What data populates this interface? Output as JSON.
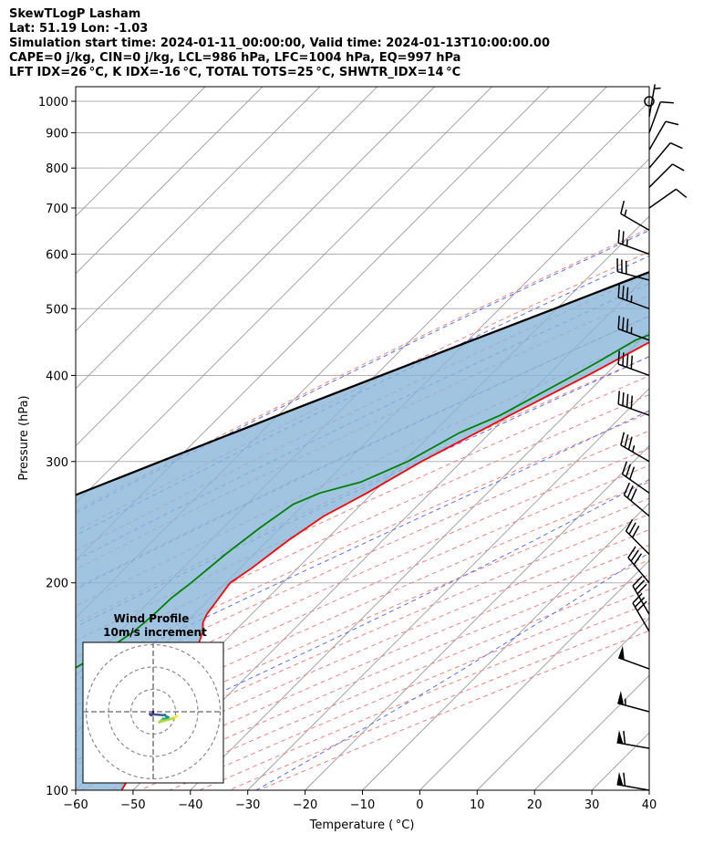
{
  "header": {
    "line1": "SkewTLogP Lasham",
    "line2": "Lat: 51.19   Lon: -1.03",
    "line3": "Simulation start time: 2024-01-11_00:00:00, Valid time: 2024-01-13T10:00:00.00",
    "line4": "CAPE=0 j/kg, CIN=0 j/kg, LCL=986 hPa, LFC=1004 hPa, EQ=997 hPa",
    "line5": "LFT IDX=26 °C, K IDX=-16 °C, TOTAL TOTS=25 °C, SHWTR_IDX=14 °C"
  },
  "chart_data": {
    "type": "line",
    "xlabel": "Temperature ( °C)",
    "ylabel": "Pressure (hPa)",
    "xlim": [
      -60,
      40
    ],
    "ylim": [
      1050,
      100
    ],
    "yscale": "log",
    "x_ticks": [
      -60,
      -50,
      -40,
      -30,
      -20,
      -10,
      0,
      10,
      20,
      30,
      40
    ],
    "x_tick_labels": [
      "−60",
      "−50",
      "−40",
      "−30",
      "−20",
      "−10",
      "0",
      "10",
      "20",
      "30",
      "40"
    ],
    "y_ticks": [
      1000,
      900,
      800,
      700,
      600,
      500,
      400,
      300,
      200,
      100
    ],
    "y_tick_labels": [
      "1000",
      "900",
      "800",
      "700",
      "600",
      "500",
      "400",
      "300",
      "200",
      "100"
    ],
    "grid": true,
    "skewed": true,
    "series": [
      {
        "role": "temperature",
        "color": "#ff0000",
        "p": [
          1000,
          990,
          975,
          950,
          925,
          900,
          850,
          800,
          750,
          700,
          650,
          600,
          550,
          500,
          450,
          400,
          350,
          300,
          270,
          250,
          230,
          210,
          200,
          190,
          180,
          175,
          170,
          160,
          150,
          140,
          130,
          125,
          120,
          115,
          110,
          105,
          100
        ],
        "t": [
          -2,
          -1.5,
          -1.4,
          -2,
          -3,
          -4.5,
          -7.5,
          -10.5,
          -14,
          -17,
          -20.5,
          -24,
          -28.3,
          -32.8,
          -37.7,
          -43,
          -49.6,
          -57,
          -61,
          -64.5,
          -66.5,
          -68,
          -69.2,
          -68.5,
          -67.8,
          -67,
          -65.5,
          -63.4,
          -61,
          -59.4,
          -58,
          -56.6,
          -56.4,
          -55,
          -53.8,
          -53,
          -52
        ]
      },
      {
        "role": "dewpoint",
        "color": "#008000",
        "p": [
          1000,
          990,
          975,
          950,
          925,
          900,
          850,
          800,
          750,
          700,
          650,
          600,
          550,
          500,
          470,
          450,
          420,
          400,
          350,
          330,
          300,
          280,
          270,
          260,
          240,
          220,
          200,
          190,
          180,
          170,
          160,
          150,
          140,
          130,
          120,
          100
        ],
        "t": [
          -2,
          -8.3,
          -13.2,
          -18.8,
          -24,
          -26.5,
          -25,
          -25.4,
          -28.5,
          -30,
          -30,
          -30.7,
          -33.4,
          -34.3,
          -37.2,
          -40.8,
          -43.4,
          -45.4,
          -51.3,
          -55.4,
          -59.4,
          -64,
          -69.2,
          -71.9,
          -73.6,
          -75,
          -76,
          -76.8,
          -77,
          -77.5,
          -79,
          -81.5,
          -83,
          -82.3,
          -82.3,
          -80.4
        ]
      },
      {
        "role": "parcel",
        "color": "#000000",
        "p": [
          1000,
          980,
          950,
          900,
          850,
          800,
          750,
          700,
          650,
          600,
          550,
          500,
          450,
          400,
          350,
          300,
          250,
          200,
          150,
          100
        ],
        "t": [
          -2,
          -3.8,
          -6.6,
          -11.2,
          -16,
          -21.2,
          -26.6,
          -32.4,
          -38.6,
          -45.3,
          -52.5,
          -60.4,
          -69.2,
          -79,
          -90,
          -102.5,
          -117.1,
          -134.4,
          -155.5,
          -183
        ]
      }
    ],
    "shading": "cin_region_between_parcel_and_temperature",
    "wind_barbs": {
      "p": [
        1000,
        950,
        900,
        850,
        800,
        750,
        700,
        650,
        600,
        550,
        500,
        450,
        400,
        350,
        300,
        270,
        250,
        220,
        200,
        180,
        170,
        150,
        130,
        115,
        100
      ],
      "direction": [
        0,
        10,
        20,
        30,
        40,
        45,
        55,
        300,
        290,
        285,
        290,
        290,
        290,
        290,
        300,
        305,
        310,
        315,
        320,
        330,
        330,
        290,
        285,
        280,
        280
      ],
      "speed_kt": [
        0,
        5,
        8,
        10,
        10,
        10,
        10,
        15,
        25,
        30,
        35,
        35,
        40,
        40,
        35,
        30,
        30,
        30,
        30,
        30,
        30,
        50,
        55,
        60,
        60
      ]
    },
    "inset": {
      "title": "Wind Profile",
      "subtitle": "10m/s increment",
      "type": "hodograph",
      "ring_step_ms": 10
    }
  }
}
